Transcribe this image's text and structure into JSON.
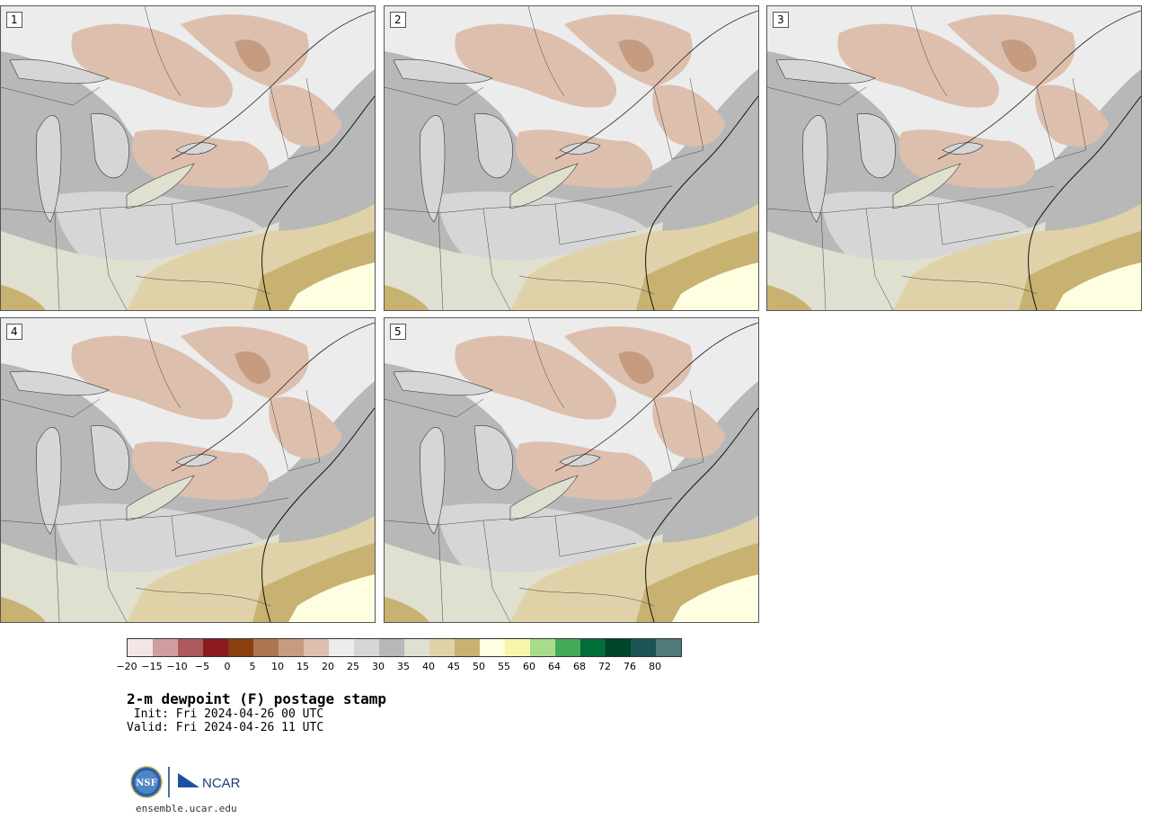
{
  "panels": [
    {
      "number": "1"
    },
    {
      "number": "2"
    },
    {
      "number": "3"
    },
    {
      "number": "4"
    },
    {
      "number": "5"
    }
  ],
  "colorbar": {
    "colors": [
      "#f3e5e5",
      "#d09ea0",
      "#ad5a5c",
      "#8b1a1f",
      "#8b4010",
      "#ab764f",
      "#c59c80",
      "#ddbfad",
      "#ececec",
      "#d6d6d6",
      "#b8b8b8",
      "#e0e0d0",
      "#e0d2a8",
      "#c8b272",
      "#fefee0",
      "#f6f6aa",
      "#a8dc8c",
      "#44aa5a",
      "#006e36",
      "#00442a",
      "#1c5454",
      "#4e7a7a"
    ],
    "labels": [
      "−20",
      "−15",
      "−10",
      "−5",
      "0",
      "5",
      "10",
      "15",
      "20",
      "25",
      "30",
      "35",
      "40",
      "45",
      "50",
      "55",
      "60",
      "64",
      "68",
      "72",
      "76",
      "80"
    ]
  },
  "title": "2-m dewpoint (F) postage stamp",
  "init": " Init: Fri 2024-04-26 00 UTC",
  "valid": "Valid: Fri 2024-04-26 11 UTC",
  "logo": {
    "nsf": "NSF",
    "ncar": "NCAR"
  },
  "site": "ensemble.ucar.edu"
}
